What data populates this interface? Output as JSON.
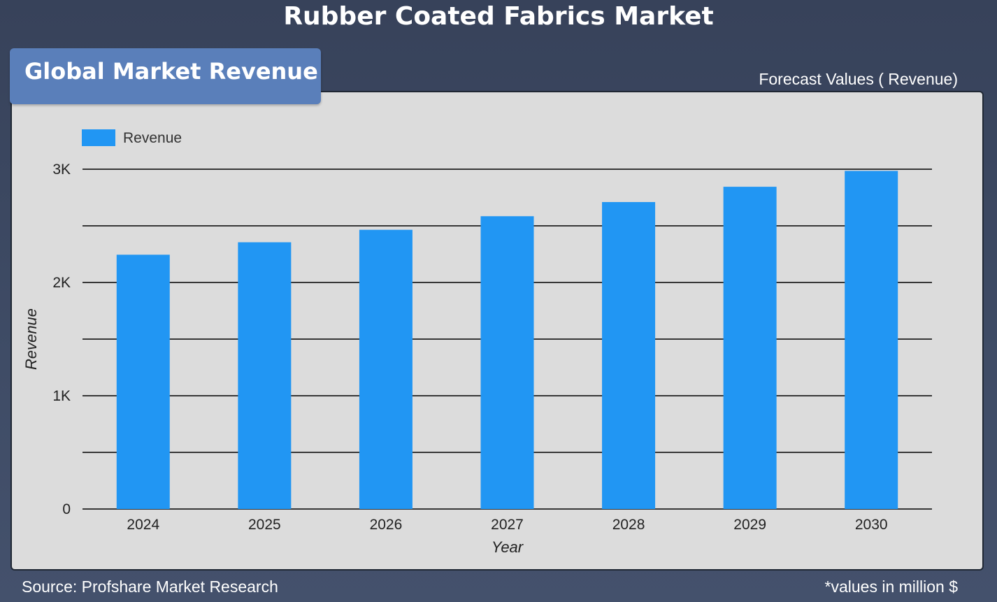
{
  "header": {
    "title": "Rubber Coated Fabrics Market",
    "badge": "Global Market Revenue",
    "forecast_label": "Forecast Values ( Revenue)"
  },
  "footer": {
    "source": "Source: Profshare Market Research",
    "units": "*values in million $"
  },
  "colors": {
    "bar": "#2196f3",
    "panel": "#dcdcdc",
    "gridline": "#000000",
    "badge": "#5a7fba"
  },
  "chart_data": {
    "type": "bar",
    "categories": [
      "2024",
      "2025",
      "2026",
      "2027",
      "2028",
      "2029",
      "2030"
    ],
    "series": [
      {
        "name": "Revenue",
        "values": [
          2245,
          2355,
          2465,
          2585,
          2710,
          2845,
          2985
        ]
      }
    ],
    "xlabel": "Year",
    "ylabel": "Revenue",
    "ylim": [
      0,
      3000
    ],
    "yticks": [
      0,
      1000,
      2000,
      3000
    ],
    "ytick_labels": [
      "0",
      "1K",
      "2K",
      "3K"
    ],
    "minor_gridlines": [
      500,
      1500,
      2500
    ],
    "legend": "top-left",
    "grid": true
  }
}
